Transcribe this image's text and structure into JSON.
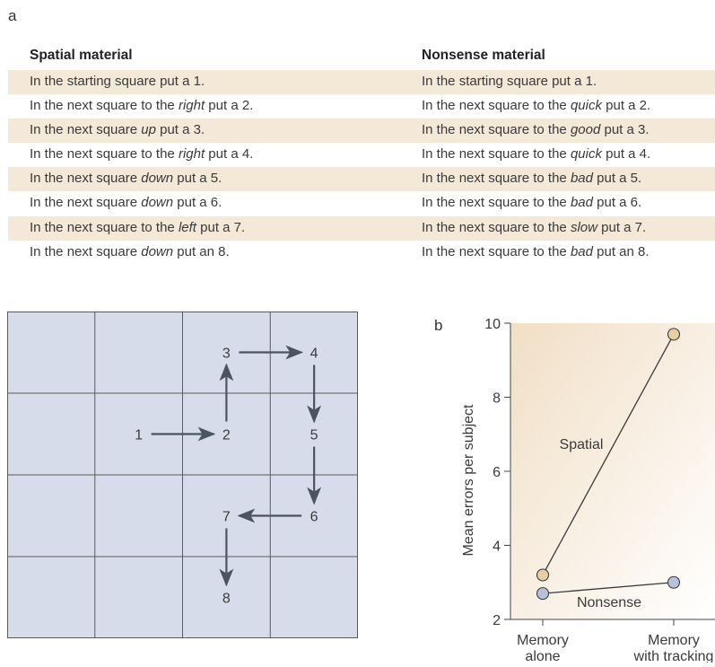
{
  "panel_a_label": "a",
  "panel_b_label": "b",
  "table": {
    "headers": [
      "Spatial material",
      "Nonsense material"
    ],
    "rows": [
      {
        "spatial": [
          "In the starting square put a 1.",
          "",
          ""
        ],
        "nonsense": [
          "In the starting square put a 1.",
          "",
          ""
        ],
        "shaded": true
      },
      {
        "spatial": [
          "In the next square to the ",
          "right",
          " put a 2."
        ],
        "nonsense": [
          "In the next square to the ",
          "quick",
          " put a 2."
        ],
        "shaded": false
      },
      {
        "spatial": [
          "In the next square ",
          "up",
          " put a 3."
        ],
        "nonsense": [
          "In the next square to the ",
          "good",
          " put a 3."
        ],
        "shaded": true
      },
      {
        "spatial": [
          "In the next square to the ",
          "right",
          " put a 4."
        ],
        "nonsense": [
          "In the next square to the ",
          "quick",
          " put a 4."
        ],
        "shaded": false
      },
      {
        "spatial": [
          "In the next square ",
          "down",
          " put a 5."
        ],
        "nonsense": [
          "In the next square to the ",
          "bad",
          " put a 5."
        ],
        "shaded": true
      },
      {
        "spatial": [
          "In the next square ",
          "down",
          " put a 6."
        ],
        "nonsense": [
          "In the next square to the ",
          "bad",
          " put a 6."
        ],
        "shaded": false
      },
      {
        "spatial": [
          "In the next square to the ",
          "left",
          " put a 7."
        ],
        "nonsense": [
          "In the next square to the ",
          "slow",
          " put a 7."
        ],
        "shaded": true
      },
      {
        "spatial": [
          "In the next square ",
          "down",
          " put an 8."
        ],
        "nonsense": [
          "In the next square to the ",
          "bad",
          " put an 8."
        ],
        "shaded": false
      }
    ]
  },
  "grid": {
    "rows": 4,
    "cols": 4,
    "numbers": [
      {
        "label": "1",
        "col": 1,
        "row": 1
      },
      {
        "label": "2",
        "col": 2,
        "row": 1
      },
      {
        "label": "3",
        "col": 2,
        "row": 0
      },
      {
        "label": "4",
        "col": 3,
        "row": 0
      },
      {
        "label": "5",
        "col": 3,
        "row": 1
      },
      {
        "label": "6",
        "col": 3,
        "row": 2
      },
      {
        "label": "7",
        "col": 2,
        "row": 2
      },
      {
        "label": "8",
        "col": 2,
        "row": 3
      }
    ],
    "fill_color": "#d6dcea",
    "line_color": "#5a5a5a"
  },
  "chart_data": {
    "type": "line",
    "categories": [
      "Memory alone",
      "Memory with tracking"
    ],
    "category_lines": [
      [
        "Memory",
        "alone"
      ],
      [
        "Memory",
        "with tracking"
      ]
    ],
    "ylabel": "Mean errors per subject",
    "ylim": [
      2,
      10
    ],
    "yticks": [
      2,
      4,
      6,
      8,
      10
    ],
    "series": [
      {
        "name": "Spatial",
        "values": [
          3.2,
          9.7
        ],
        "color": "#e8cfa0"
      },
      {
        "name": "Nonsense",
        "values": [
          2.7,
          3.0
        ],
        "color": "#b8c0dc"
      }
    ],
    "background_gradient": [
      "#f1dfc6",
      "#ffffff"
    ]
  }
}
